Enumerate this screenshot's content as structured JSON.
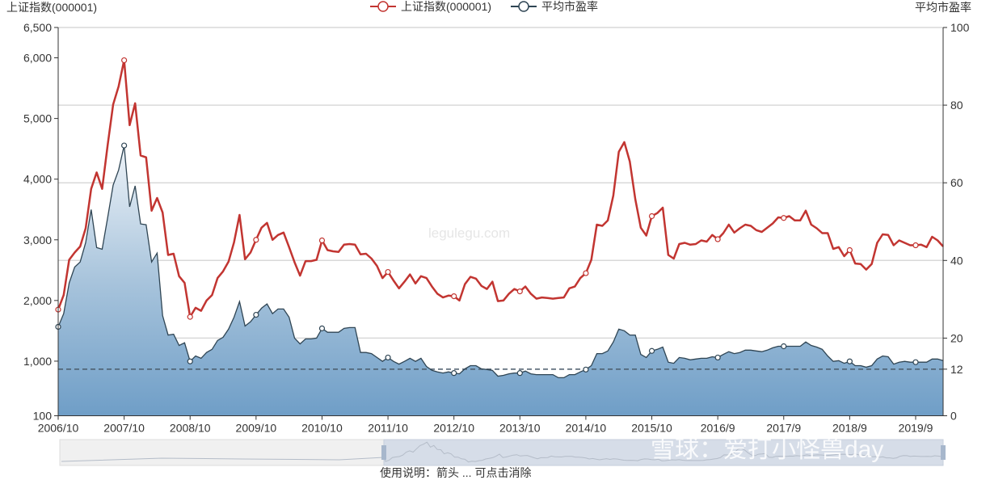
{
  "chart_data": {
    "type": "line",
    "title": "",
    "x_tick_labels": [
      "2006/10",
      "2007/10",
      "2008/10",
      "2009/10",
      "2010/10",
      "2011/10",
      "2012/10",
      "2013/10",
      "2014/10",
      "2015/10",
      "2016/9",
      "2017/9",
      "2018/9",
      "2019/9"
    ],
    "x_frequency": "monthly",
    "left_axis": {
      "label": "上证指数(000001)",
      "range": [
        100,
        6500
      ],
      "ticks": [
        100,
        1000,
        2000,
        3000,
        4000,
        5000,
        6000,
        6500
      ],
      "tick_labels": [
        "100",
        "1,000",
        "2,000",
        "3,000",
        "4,000",
        "5,000",
        "6,000",
        "6,500"
      ]
    },
    "right_axis": {
      "label": "平均市盈率",
      "range": [
        0,
        100
      ],
      "ticks": [
        0,
        12,
        20,
        40,
        60,
        80,
        100
      ],
      "tick_labels": [
        "0",
        "12",
        "20",
        "40",
        "60",
        "80",
        "100"
      ],
      "reference_line": 12
    },
    "grid": true,
    "legend": {
      "placement": "top-center",
      "entries": [
        "上证指数(000001)",
        "平均市盈率"
      ]
    },
    "series": [
      {
        "name": "上证指数(000001)",
        "axis": "left",
        "color": "#c23531",
        "values": [
          1850,
          2090,
          2670,
          2790,
          2890,
          3190,
          3840,
          4110,
          3840,
          4560,
          5230,
          5530,
          5960,
          4890,
          5250,
          4390,
          4360,
          3480,
          3690,
          3450,
          2750,
          2770,
          2400,
          2290,
          1730,
          1880,
          1830,
          2000,
          2090,
          2370,
          2480,
          2640,
          2960,
          3410,
          2680,
          2790,
          3000,
          3200,
          3280,
          3000,
          3080,
          3120,
          2880,
          2630,
          2410,
          2650,
          2650,
          2670,
          2990,
          2830,
          2810,
          2800,
          2920,
          2930,
          2920,
          2760,
          2770,
          2690,
          2570,
          2370,
          2470,
          2330,
          2200,
          2310,
          2430,
          2280,
          2400,
          2370,
          2230,
          2110,
          2050,
          2080,
          2070,
          2000,
          2270,
          2390,
          2360,
          2240,
          2190,
          2310,
          1990,
          2000,
          2110,
          2190,
          2150,
          2230,
          2110,
          2030,
          2050,
          2040,
          2030,
          2040,
          2050,
          2200,
          2230,
          2370,
          2450,
          2670,
          3250,
          3230,
          3320,
          3730,
          4450,
          4610,
          4290,
          3670,
          3200,
          3070,
          3390,
          3440,
          3530,
          2750,
          2690,
          2930,
          2950,
          2920,
          2930,
          2990,
          2970,
          3080,
          3010,
          3110,
          3250,
          3120,
          3190,
          3250,
          3230,
          3160,
          3130,
          3200,
          3270,
          3370,
          3360,
          3390,
          3320,
          3320,
          3480,
          3250,
          3190,
          3110,
          3110,
          2850,
          2880,
          2730,
          2830,
          2610,
          2600,
          2510,
          2600,
          2950,
          3090,
          3080,
          2910,
          2990,
          2950,
          2910,
          2910,
          2920,
          2880,
          3050,
          2990,
          2890
        ]
      },
      {
        "name": "平均市盈率",
        "axis": "right",
        "color": "#2f4554",
        "type": "area",
        "values": [
          22.9,
          26.3,
          34.2,
          38.3,
          39.6,
          44.6,
          53.1,
          43.3,
          42.9,
          51.0,
          59.4,
          63.3,
          69.6,
          53.8,
          59.2,
          49.4,
          49.2,
          39.6,
          41.9,
          25.8,
          20.8,
          21.0,
          18.1,
          18.8,
          14.0,
          15.4,
          14.8,
          16.3,
          17.1,
          19.4,
          20.2,
          22.3,
          25.4,
          29.4,
          23.1,
          24.2,
          26.0,
          27.7,
          28.8,
          26.3,
          27.5,
          27.5,
          25.4,
          20.0,
          18.5,
          19.8,
          19.8,
          20.0,
          22.5,
          21.5,
          21.5,
          21.5,
          22.5,
          22.7,
          22.7,
          16.3,
          16.3,
          16.0,
          15.0,
          14.0,
          15.0,
          14.0,
          13.3,
          14.0,
          14.8,
          14.0,
          14.8,
          12.7,
          11.7,
          11.3,
          11.0,
          11.3,
          11.0,
          10.8,
          12.1,
          12.9,
          12.9,
          12.1,
          11.9,
          11.7,
          10.2,
          10.4,
          10.8,
          11.0,
          11.0,
          11.5,
          10.8,
          10.6,
          10.6,
          10.6,
          10.6,
          9.8,
          9.8,
          10.6,
          10.6,
          11.3,
          11.9,
          12.9,
          16.0,
          16.0,
          16.7,
          19.0,
          22.3,
          21.9,
          20.8,
          20.8,
          15.8,
          15.0,
          16.7,
          17.1,
          17.7,
          13.8,
          13.5,
          15.0,
          14.8,
          14.4,
          14.6,
          14.8,
          14.8,
          15.2,
          15.0,
          15.8,
          16.5,
          16.0,
          16.3,
          16.9,
          16.9,
          16.7,
          16.5,
          16.9,
          17.5,
          17.9,
          17.9,
          17.9,
          17.9,
          17.9,
          19.0,
          18.1,
          17.7,
          17.1,
          15.4,
          14.0,
          14.2,
          13.5,
          14.0,
          12.9,
          12.9,
          12.5,
          12.9,
          14.6,
          15.4,
          15.2,
          13.3,
          13.8,
          14.0,
          13.8,
          13.8,
          13.8,
          13.8,
          14.6,
          14.6,
          14.2
        ]
      }
    ],
    "marker_every": 12,
    "watermark": "legulegu.com",
    "overlay_watermark": "雪球：爱打小怪兽day"
  },
  "footer_note": "使用说明：箭头 ... 可点击消除"
}
